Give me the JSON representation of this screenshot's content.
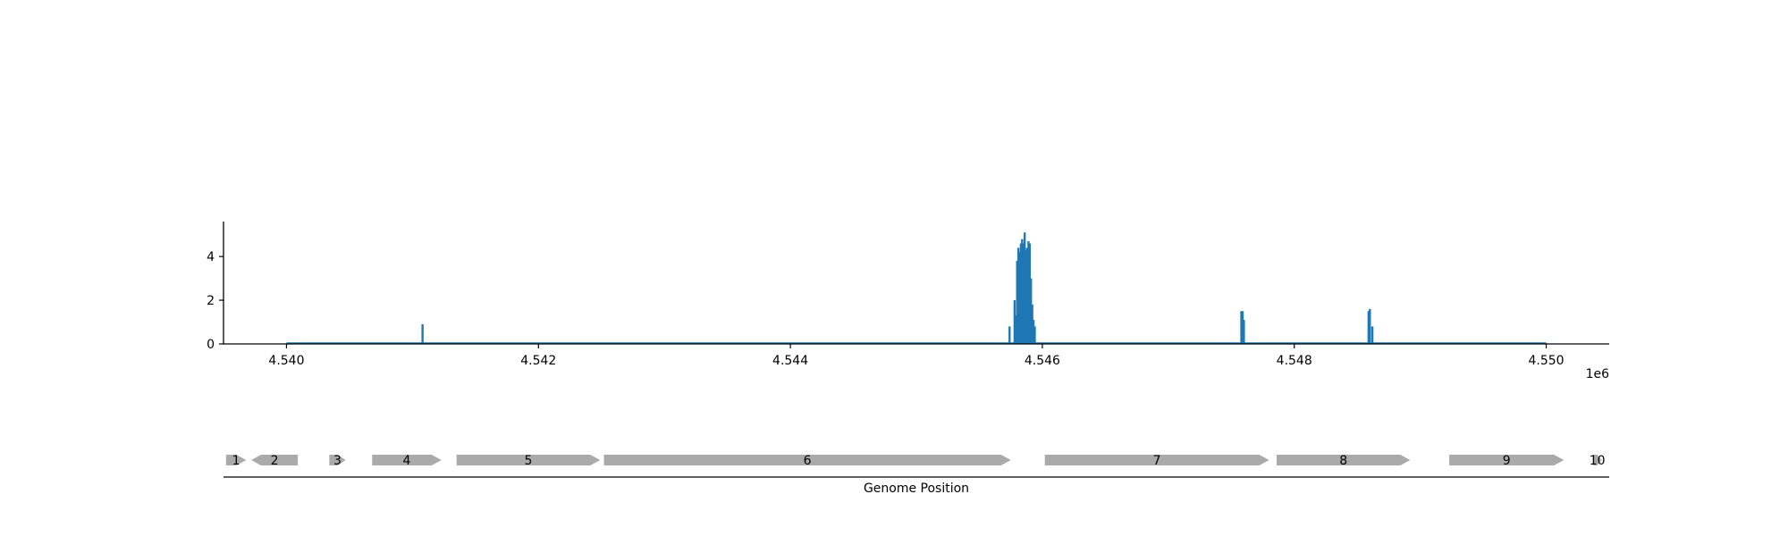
{
  "chart_data": [
    {
      "type": "bar",
      "title": "",
      "xlabel": "",
      "ylabel": "",
      "x_offset_label": "1e6",
      "xlim": [
        4539500,
        4550500
      ],
      "ylim": [
        0,
        5.6
      ],
      "grid": false,
      "legend": false,
      "x_ticks": [
        {
          "value": 4540000,
          "label": "4.540"
        },
        {
          "value": 4542000,
          "label": "4.542"
        },
        {
          "value": 4544000,
          "label": "4.544"
        },
        {
          "value": 4546000,
          "label": "4.546"
        },
        {
          "value": 4548000,
          "label": "4.548"
        },
        {
          "value": 4550000,
          "label": "4.550"
        }
      ],
      "y_ticks": [
        {
          "value": 0,
          "label": "0"
        },
        {
          "value": 2,
          "label": "2"
        },
        {
          "value": 4,
          "label": "4"
        }
      ],
      "series": [
        {
          "color": "#1f77b4",
          "baseline": [
            4540000,
            4550000
          ],
          "points": [
            {
              "x": 4541080,
              "y": 0.9
            },
            {
              "x": 4545740,
              "y": 0.8
            },
            {
              "x": 4545780,
              "y": 2.0
            },
            {
              "x": 4545790,
              "y": 1.3
            },
            {
              "x": 4545800,
              "y": 3.8
            },
            {
              "x": 4545810,
              "y": 4.4
            },
            {
              "x": 4545820,
              "y": 4.2
            },
            {
              "x": 4545830,
              "y": 4.6
            },
            {
              "x": 4545840,
              "y": 4.8
            },
            {
              "x": 4545850,
              "y": 4.6
            },
            {
              "x": 4545860,
              "y": 5.1
            },
            {
              "x": 4545870,
              "y": 4.3
            },
            {
              "x": 4545880,
              "y": 4.4
            },
            {
              "x": 4545890,
              "y": 4.7
            },
            {
              "x": 4545900,
              "y": 4.6
            },
            {
              "x": 4545910,
              "y": 3.0
            },
            {
              "x": 4545920,
              "y": 1.8
            },
            {
              "x": 4545930,
              "y": 1.1
            },
            {
              "x": 4545940,
              "y": 0.8
            },
            {
              "x": 4547580,
              "y": 1.5
            },
            {
              "x": 4547590,
              "y": 1.5
            },
            {
              "x": 4547600,
              "y": 1.1
            },
            {
              "x": 4548590,
              "y": 1.5
            },
            {
              "x": 4548600,
              "y": 1.6
            },
            {
              "x": 4548620,
              "y": 0.8
            }
          ]
        }
      ]
    },
    {
      "type": "gene-track",
      "xlabel": "Genome Position",
      "xlim": [
        4539500,
        4550500
      ],
      "color": "#aaaaaa",
      "genes": [
        {
          "label": "1",
          "start": 4539520,
          "end": 4539680,
          "strand": "+"
        },
        {
          "label": "2",
          "start": 4539720,
          "end": 4540090,
          "strand": "-"
        },
        {
          "label": "3",
          "start": 4540340,
          "end": 4540470,
          "strand": "+"
        },
        {
          "label": "4",
          "start": 4540680,
          "end": 4541230,
          "strand": "+"
        },
        {
          "label": "5",
          "start": 4541350,
          "end": 4542490,
          "strand": "+"
        },
        {
          "label": "6",
          "start": 4542520,
          "end": 4545750,
          "strand": "+"
        },
        {
          "label": "7",
          "start": 4546020,
          "end": 4547800,
          "strand": "+"
        },
        {
          "label": "8",
          "start": 4547860,
          "end": 4548920,
          "strand": "+"
        },
        {
          "label": "9",
          "start": 4549230,
          "end": 4550140,
          "strand": "+"
        },
        {
          "label": "10",
          "start": 4550370,
          "end": 4550440,
          "strand": "+"
        }
      ]
    }
  ]
}
